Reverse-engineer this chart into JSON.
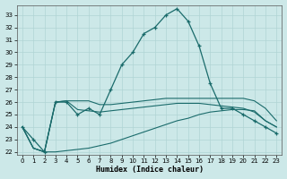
{
  "xlabel": "Humidex (Indice chaleur)",
  "background_color": "#cce8e8",
  "grid_color": "#b0d4d4",
  "line_color": "#1a6b6b",
  "xlim": [
    -0.5,
    23.5
  ],
  "ylim": [
    21.8,
    33.8
  ],
  "yticks": [
    22,
    23,
    24,
    25,
    26,
    27,
    28,
    29,
    30,
    31,
    32,
    33
  ],
  "xticks": [
    0,
    1,
    2,
    3,
    4,
    5,
    6,
    7,
    8,
    9,
    10,
    11,
    12,
    13,
    14,
    15,
    16,
    17,
    18,
    19,
    20,
    21,
    22,
    23
  ],
  "humidex": [
    24,
    23,
    22,
    26,
    26,
    25,
    25.5,
    25,
    27,
    29,
    30,
    31.5,
    32,
    33,
    33.5,
    32.5,
    30.5,
    27.5,
    25.5,
    25.5,
    25,
    24.5,
    24,
    23.5
  ],
  "ref1": [
    24,
    22.3,
    22,
    22,
    22.1,
    22.2,
    22.3,
    22.5,
    22.7,
    23,
    23.3,
    23.6,
    23.9,
    24.2,
    24.5,
    24.7,
    25,
    25.2,
    25.3,
    25.4,
    25.4,
    25.3,
    24.5,
    24
  ],
  "ref2": [
    24,
    22.3,
    22,
    26,
    26.1,
    26.1,
    26.1,
    25.8,
    25.8,
    25.9,
    26,
    26.1,
    26.2,
    26.3,
    26.3,
    26.3,
    26.3,
    26.3,
    26.3,
    26.3,
    26.3,
    26.1,
    25.5,
    24.5
  ],
  "ref3": [
    24,
    22.3,
    22,
    26,
    26.1,
    25.4,
    25.3,
    25.2,
    25.3,
    25.4,
    25.5,
    25.6,
    25.7,
    25.8,
    25.9,
    25.9,
    25.9,
    25.8,
    25.7,
    25.6,
    25.5,
    25.2,
    24.5,
    24
  ]
}
